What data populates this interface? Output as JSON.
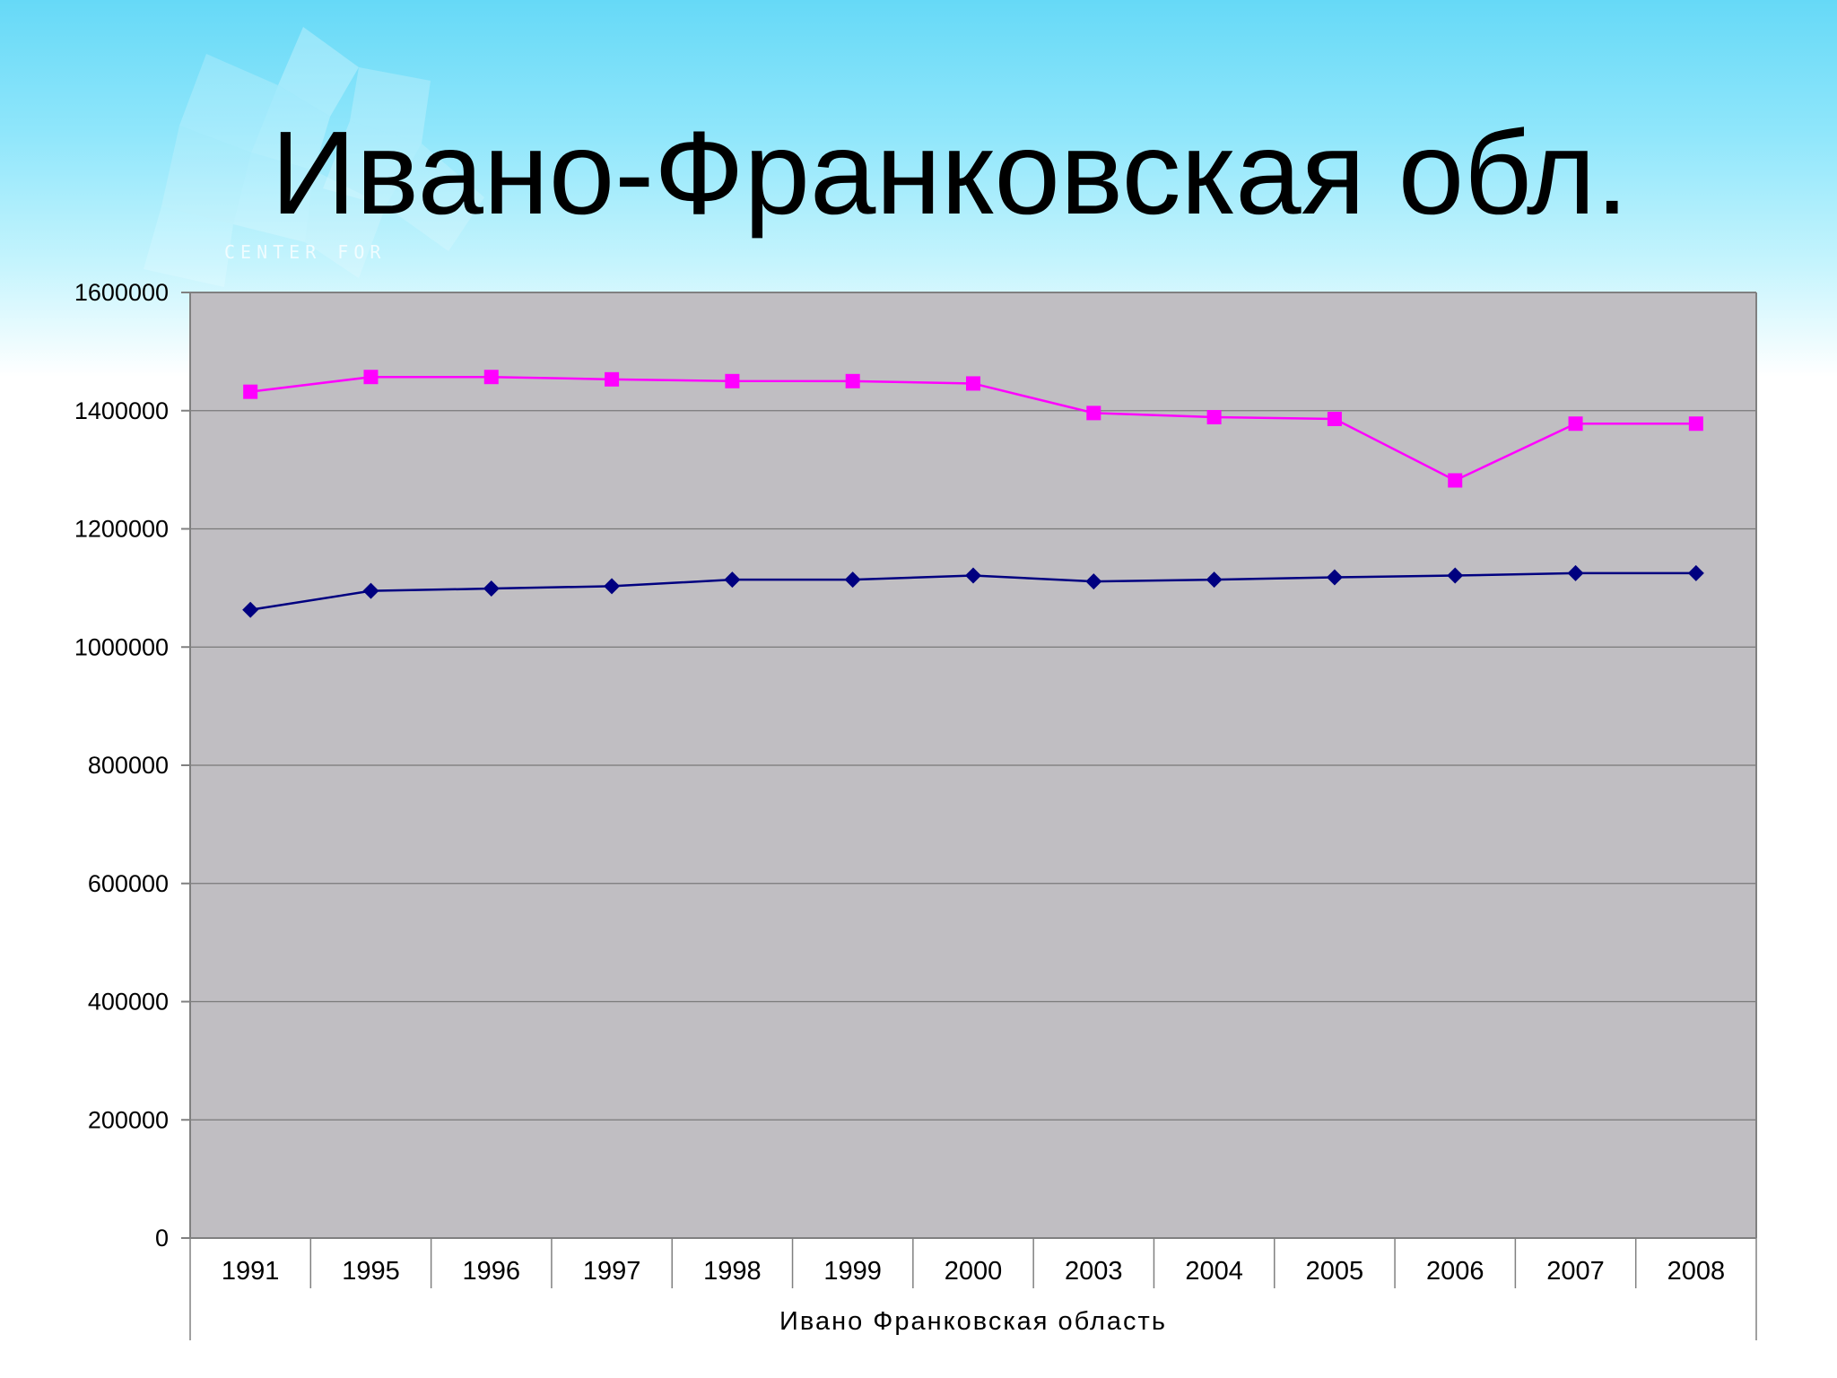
{
  "slide": {
    "title": "Ивано-Франковская обл.",
    "logo_text": "CENTER FOR"
  },
  "chart_data": {
    "type": "line",
    "title": "",
    "xlabel": "Ивано Франковская область",
    "ylabel": "",
    "categories": [
      "1991",
      "1995",
      "1996",
      "1997",
      "1998",
      "1999",
      "2000",
      "2003",
      "2004",
      "2005",
      "2006",
      "2007",
      "2008"
    ],
    "ylim": [
      0,
      1600000
    ],
    "yticks": [
      0,
      200000,
      400000,
      600000,
      800000,
      1000000,
      1200000,
      1400000,
      1600000
    ],
    "grid": true,
    "plot_background": "#c0bec2",
    "series": [
      {
        "color": "#ff00ff",
        "marker": "square",
        "values": [
          1432000,
          1457000,
          1457000,
          1453000,
          1450000,
          1450000,
          1446000,
          1396000,
          1389000,
          1386000,
          1282000,
          1378000,
          1378000
        ]
      },
      {
        "color": "#000080",
        "marker": "diamond",
        "values": [
          1063000,
          1095000,
          1099000,
          1103000,
          1114000,
          1114000,
          1121000,
          1111000,
          1114000,
          1118000,
          1121000,
          1125000,
          1125000
        ]
      }
    ]
  }
}
